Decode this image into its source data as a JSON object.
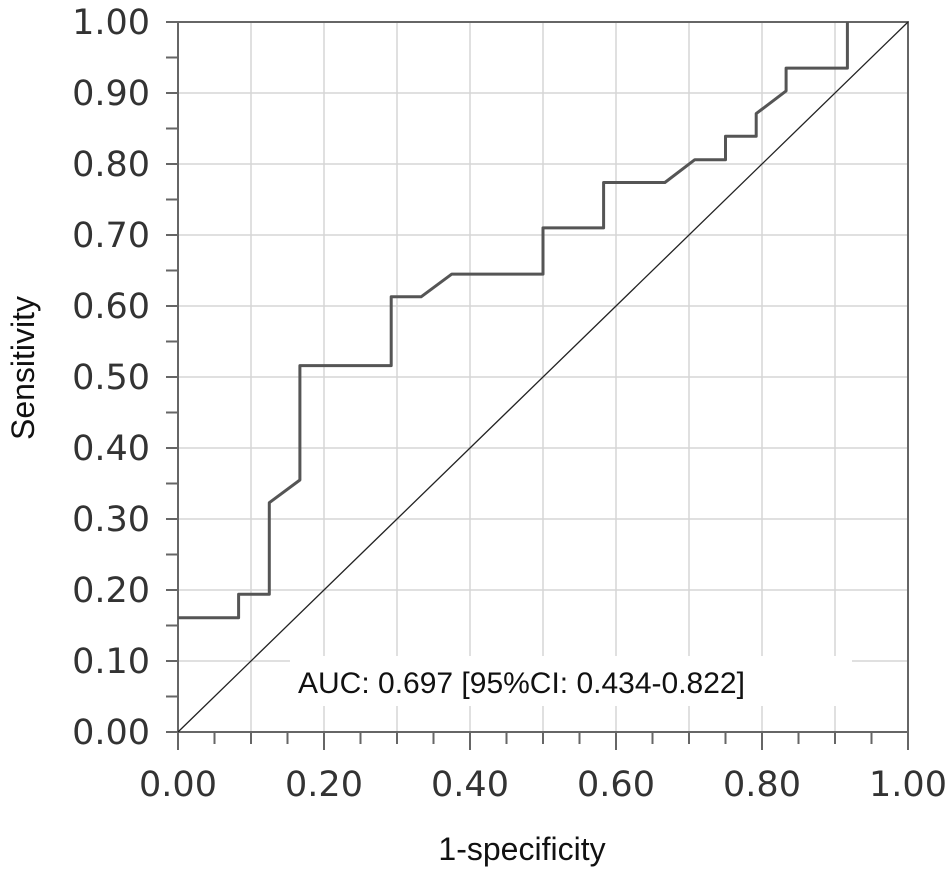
{
  "chart_data": {
    "type": "line",
    "title": "",
    "xlabel": "1-specificity",
    "ylabel": "Sensitivity",
    "xlim": [
      0,
      1
    ],
    "ylim": [
      0,
      1
    ],
    "x_ticks": [
      "0.00",
      "0.20",
      "0.40",
      "0.60",
      "0.80",
      "1.00"
    ],
    "y_ticks": [
      "0.00",
      "0.10",
      "0.20",
      "0.30",
      "0.40",
      "0.50",
      "0.60",
      "0.70",
      "0.80",
      "0.90",
      "1.00"
    ],
    "grid": true,
    "annotation": "AUC: 0.697 [95%CI: 0.434-0.822]",
    "series": [
      {
        "x": [
          0.0,
          0.083,
          0.083,
          0.125,
          0.125,
          0.167,
          0.167,
          0.292,
          0.292,
          0.333,
          0.375,
          0.5,
          0.5,
          0.583,
          0.583,
          0.667,
          0.708,
          0.75,
          0.75,
          0.792,
          0.792,
          0.833,
          0.833,
          0.917,
          0.917
        ],
        "y": [
          0.161,
          0.161,
          0.194,
          0.194,
          0.323,
          0.355,
          0.516,
          0.516,
          0.613,
          0.613,
          0.645,
          0.645,
          0.71,
          0.71,
          0.774,
          0.774,
          0.806,
          0.806,
          0.839,
          0.839,
          0.871,
          0.903,
          0.935,
          0.935,
          1.0
        ]
      },
      {
        "x": [
          0,
          1
        ],
        "y": [
          0,
          1
        ]
      }
    ]
  }
}
